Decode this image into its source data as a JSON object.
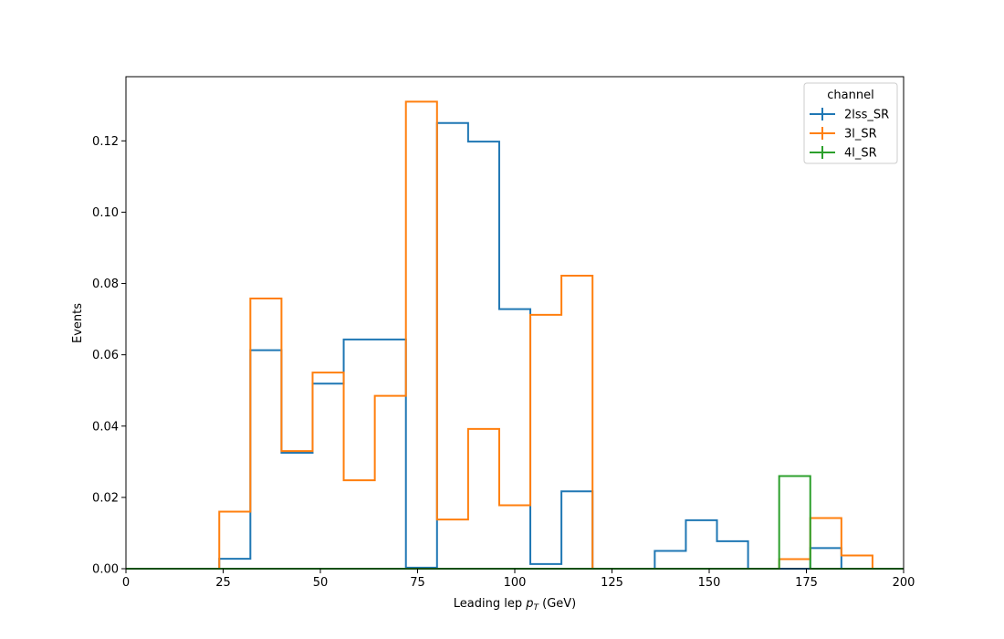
{
  "chart_data": {
    "type": "histogram-step",
    "title": "",
    "xlabel": "Leading lep",
    "xlabel_symbol": "p",
    "xlabel_subscript": "T",
    "xlabel_unit": "(GeV)",
    "ylabel": "Events",
    "xlim": [
      0,
      200
    ],
    "ylim": [
      0,
      0.138
    ],
    "xticks": [
      0,
      25,
      50,
      75,
      100,
      125,
      150,
      175,
      200
    ],
    "xtick_labels": [
      "0",
      "25",
      "50",
      "75",
      "100",
      "125",
      "150",
      "175",
      "200"
    ],
    "yticks": [
      0.0,
      0.02,
      0.04,
      0.06,
      0.08,
      0.1,
      0.12
    ],
    "ytick_labels": [
      "0.00",
      "0.02",
      "0.04",
      "0.06",
      "0.08",
      "0.10",
      "0.12"
    ],
    "grid": false,
    "legend": {
      "title": "channel",
      "placement": "top-right"
    },
    "bin_edges": [
      0,
      8,
      16,
      24,
      32,
      40,
      48,
      56,
      64,
      72,
      80,
      88,
      96,
      104,
      112,
      120,
      128,
      136,
      144,
      152,
      160,
      168,
      176,
      184,
      192,
      200
    ],
    "series": [
      {
        "name": "2lss_SR",
        "color": "#1f77b4",
        "values": [
          0,
          0,
          0,
          0.0028,
          0.0613,
          0.0325,
          0.0519,
          0.0643,
          0.0643,
          0.0003,
          0.125,
          0.1198,
          0.0728,
          0.0013,
          0.0217,
          0,
          0,
          0.005,
          0.0136,
          0.0077,
          0,
          0,
          0.0058,
          0,
          0
        ]
      },
      {
        "name": "3l_SR",
        "color": "#ff7f0e",
        "values": [
          0,
          0,
          0,
          0.016,
          0.0758,
          0.033,
          0.055,
          0.0248,
          0.0485,
          0.131,
          0.0138,
          0.0392,
          0.0178,
          0.0712,
          0.0822,
          0,
          0,
          0,
          0,
          0,
          0,
          0.0027,
          0.0142,
          0.0037,
          0
        ]
      },
      {
        "name": "4l_SR",
        "color": "#2ca02c",
        "values": [
          0,
          0,
          0,
          0,
          0,
          0,
          0,
          0,
          0,
          0,
          0,
          0,
          0,
          0,
          0,
          0,
          0,
          0,
          0,
          0,
          0,
          0.026,
          0,
          0,
          0
        ]
      }
    ]
  }
}
